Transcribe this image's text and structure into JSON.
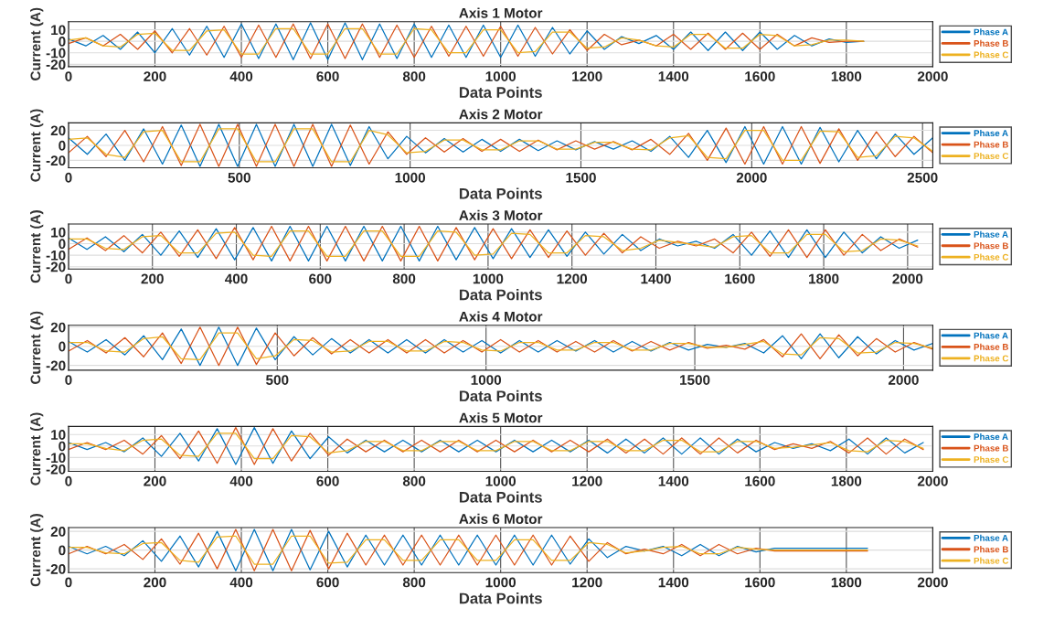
{
  "chart_data": [
    {
      "type": "line",
      "title": "Axis 1 Motor",
      "xlabel": "Data Points",
      "ylabel": "Current (A)",
      "xlim": [
        0,
        2000
      ],
      "ylim": [
        -22,
        17
      ],
      "xticks": [
        0,
        200,
        400,
        600,
        800,
        1000,
        1200,
        1400,
        1600,
        1800,
        2000
      ],
      "yticks": [
        -20,
        -10,
        0,
        10
      ],
      "grid": true,
      "legend": "right",
      "x": [
        0,
        40,
        80,
        120,
        160,
        200,
        240,
        280,
        320,
        360,
        400,
        440,
        480,
        520,
        560,
        600,
        640,
        680,
        720,
        760,
        800,
        840,
        880,
        920,
        960,
        1000,
        1040,
        1080,
        1120,
        1160,
        1200,
        1240,
        1280,
        1320,
        1360,
        1400,
        1440,
        1480,
        1520,
        1560,
        1600,
        1640,
        1680,
        1720,
        1760,
        1800,
        1840
      ],
      "series": [
        {
          "name": "Phase A",
          "color": "#0072bd",
          "values": [
            2,
            -4,
            5,
            -7,
            8,
            -10,
            11,
            -12,
            13,
            -14,
            15,
            -15,
            15,
            -16,
            16,
            -16,
            16,
            -16,
            15,
            -15,
            15,
            -14,
            14,
            -14,
            14,
            -14,
            14,
            -13,
            12,
            -11,
            9,
            -7,
            4,
            -2,
            5,
            -7,
            8,
            -8,
            8,
            -8,
            8,
            -7,
            5,
            -4,
            2,
            -1,
            0
          ]
        },
        {
          "name": "Phase B",
          "color": "#d95319",
          "values": [
            -2,
            3,
            -4,
            6,
            -7,
            9,
            -10,
            11,
            -12,
            13,
            -14,
            14,
            -14,
            15,
            -15,
            15,
            -15,
            15,
            -14,
            14,
            -14,
            13,
            -13,
            13,
            -13,
            13,
            -13,
            12,
            -11,
            10,
            -8,
            6,
            -3,
            1,
            -4,
            6,
            -7,
            7,
            -7,
            7,
            -7,
            6,
            -4,
            3,
            -1,
            0,
            0
          ]
        },
        {
          "name": "Phase C",
          "color": "#edb120",
          "values": [
            1,
            3,
            -4,
            -5,
            6,
            7,
            -8,
            -8,
            9,
            10,
            -11,
            -11,
            11,
            11,
            -11,
            -11,
            11,
            11,
            -11,
            -11,
            11,
            10,
            -10,
            -10,
            10,
            10,
            -10,
            -9,
            8,
            8,
            -6,
            -5,
            3,
            1,
            -4,
            -5,
            6,
            6,
            -6,
            -6,
            6,
            5,
            -4,
            -3,
            1,
            1,
            0
          ]
        }
      ]
    },
    {
      "type": "line",
      "title": "Axis 2 Motor",
      "xlabel": "Data Points",
      "ylabel": "Current (A)",
      "xlim": [
        0,
        2530
      ],
      "ylim": [
        -30,
        30
      ],
      "xticks": [
        0,
        500,
        1000,
        1500,
        2000,
        2500
      ],
      "yticks": [
        -20,
        0,
        20
      ],
      "grid": true,
      "legend": "right",
      "x": [
        0,
        55,
        110,
        165,
        220,
        275,
        330,
        385,
        440,
        495,
        550,
        605,
        660,
        715,
        770,
        825,
        880,
        935,
        990,
        1045,
        1100,
        1155,
        1210,
        1265,
        1320,
        1375,
        1430,
        1485,
        1540,
        1595,
        1650,
        1705,
        1760,
        1815,
        1870,
        1925,
        1980,
        2035,
        2090,
        2145,
        2200,
        2255,
        2310,
        2365,
        2420,
        2475,
        2530
      ],
      "series": [
        {
          "name": "Phase A",
          "color": "#0072bd",
          "values": [
            10,
            -12,
            15,
            -20,
            22,
            -25,
            27,
            -28,
            28,
            -28,
            28,
            -28,
            28,
            -28,
            28,
            -27,
            25,
            -18,
            12,
            -10,
            9,
            -9,
            8,
            -8,
            8,
            -7,
            6,
            -6,
            5,
            -5,
            6,
            -8,
            12,
            -16,
            20,
            -23,
            25,
            -25,
            25,
            -25,
            24,
            -22,
            20,
            -18,
            15,
            -12,
            10
          ]
        },
        {
          "name": "Phase B",
          "color": "#d95319",
          "values": [
            -10,
            12,
            -15,
            20,
            -22,
            25,
            -27,
            28,
            -28,
            28,
            -28,
            28,
            -28,
            28,
            -28,
            27,
            -25,
            18,
            -12,
            10,
            -9,
            9,
            -8,
            8,
            -8,
            7,
            -6,
            6,
            -5,
            5,
            -6,
            8,
            -12,
            16,
            -20,
            23,
            -25,
            25,
            -25,
            25,
            -24,
            22,
            -20,
            18,
            -15,
            12,
            -10
          ]
        },
        {
          "name": "Phase C",
          "color": "#edb120",
          "values": [
            8,
            10,
            -12,
            -16,
            18,
            20,
            -22,
            -22,
            22,
            22,
            -22,
            -22,
            22,
            22,
            -22,
            -22,
            20,
            14,
            -10,
            -8,
            7,
            7,
            -6,
            -6,
            6,
            6,
            -5,
            -5,
            4,
            4,
            -5,
            -6,
            10,
            13,
            -16,
            -18,
            20,
            20,
            -20,
            -20,
            19,
            18,
            -16,
            -14,
            12,
            10,
            -8
          ]
        }
      ]
    },
    {
      "type": "line",
      "title": "Axis 3 Motor",
      "xlabel": "Data Points",
      "ylabel": "Current (A)",
      "xlim": [
        0,
        2060
      ],
      "ylim": [
        -22,
        17
      ],
      "xticks": [
        0,
        200,
        400,
        600,
        800,
        1000,
        1200,
        1400,
        1600,
        1800,
        2000
      ],
      "yticks": [
        -20,
        -10,
        0,
        10
      ],
      "grid": true,
      "legend": "right",
      "x": [
        0,
        44,
        88,
        132,
        176,
        220,
        264,
        308,
        352,
        396,
        440,
        484,
        528,
        572,
        616,
        660,
        704,
        748,
        792,
        836,
        880,
        924,
        968,
        1012,
        1056,
        1100,
        1144,
        1188,
        1232,
        1276,
        1320,
        1364,
        1408,
        1452,
        1496,
        1540,
        1584,
        1628,
        1672,
        1716,
        1760,
        1804,
        1848,
        1892,
        1936,
        1980,
        2024
      ],
      "series": [
        {
          "name": "Phase A",
          "color": "#0072bd",
          "values": [
            5,
            -5,
            6,
            -7,
            8,
            -10,
            11,
            -12,
            13,
            -14,
            14,
            -15,
            15,
            -15,
            15,
            -15,
            15,
            -15,
            15,
            -15,
            15,
            -14,
            14,
            -13,
            13,
            -12,
            12,
            -11,
            10,
            -9,
            8,
            -6,
            4,
            -2,
            2,
            -4,
            8,
            -10,
            11,
            -12,
            12,
            -12,
            10,
            -8,
            6,
            -4,
            3
          ]
        },
        {
          "name": "Phase B",
          "color": "#d95319",
          "values": [
            -5,
            5,
            -6,
            7,
            -8,
            10,
            -11,
            12,
            -13,
            14,
            -14,
            15,
            -15,
            15,
            -15,
            15,
            -15,
            15,
            -15,
            15,
            -15,
            14,
            -14,
            13,
            -13,
            12,
            -12,
            11,
            -10,
            9,
            -8,
            6,
            -4,
            2,
            -2,
            4,
            -8,
            10,
            -11,
            12,
            -12,
            12,
            -10,
            8,
            -6,
            4,
            -3
          ]
        },
        {
          "name": "Phase C",
          "color": "#edb120",
          "values": [
            4,
            4,
            -4,
            -5,
            6,
            7,
            -8,
            -8,
            9,
            10,
            -10,
            -11,
            11,
            11,
            -11,
            -11,
            11,
            11,
            -11,
            -11,
            11,
            10,
            -10,
            -9,
            9,
            8,
            -8,
            -8,
            7,
            6,
            -6,
            -4,
            3,
            1,
            -1,
            -3,
            6,
            7,
            -8,
            -8,
            8,
            8,
            -7,
            -6,
            4,
            3,
            -2
          ]
        }
      ]
    },
    {
      "type": "line",
      "title": "Axis 4 Motor",
      "xlabel": "Data Points",
      "ylabel": "Current (A)",
      "xlim": [
        0,
        2070
      ],
      "ylim": [
        -25,
        22
      ],
      "xticks": [
        0,
        500,
        1000,
        1500,
        2000
      ],
      "yticks": [
        -20,
        0,
        20
      ],
      "grid": true,
      "legend": "right",
      "x": [
        0,
        45,
        90,
        135,
        180,
        225,
        270,
        315,
        360,
        405,
        450,
        495,
        540,
        585,
        630,
        675,
        720,
        765,
        810,
        855,
        900,
        945,
        990,
        1035,
        1080,
        1125,
        1170,
        1215,
        1260,
        1305,
        1350,
        1395,
        1440,
        1485,
        1530,
        1575,
        1620,
        1665,
        1710,
        1755,
        1800,
        1845,
        1890,
        1935,
        1980,
        2025,
        2070
      ],
      "series": [
        {
          "name": "Phase A",
          "color": "#0072bd",
          "values": [
            5,
            -6,
            7,
            -9,
            11,
            -14,
            18,
            -20,
            20,
            -20,
            19,
            -14,
            10,
            -9,
            8,
            -7,
            7,
            -7,
            7,
            -7,
            7,
            -6,
            6,
            -7,
            6,
            -6,
            6,
            -5,
            6,
            -6,
            5,
            -5,
            4,
            -4,
            2,
            -1,
            3,
            -7,
            11,
            -13,
            13,
            -12,
            10,
            -8,
            6,
            -4,
            3
          ]
        },
        {
          "name": "Phase B",
          "color": "#d95319",
          "values": [
            -5,
            6,
            -7,
            9,
            -11,
            14,
            -18,
            20,
            -20,
            20,
            -19,
            14,
            -10,
            9,
            -8,
            7,
            -7,
            7,
            -7,
            7,
            -7,
            6,
            -6,
            7,
            -6,
            6,
            -6,
            5,
            -6,
            6,
            -5,
            5,
            -4,
            4,
            -2,
            1,
            -3,
            7,
            -11,
            13,
            -13,
            12,
            -10,
            8,
            -6,
            4,
            -3
          ]
        },
        {
          "name": "Phase C",
          "color": "#edb120",
          "values": [
            4,
            4,
            -5,
            -6,
            8,
            10,
            -13,
            -14,
            14,
            14,
            -13,
            -10,
            7,
            6,
            -6,
            -5,
            5,
            5,
            -5,
            -5,
            5,
            4,
            -4,
            -5,
            4,
            4,
            -4,
            -4,
            4,
            4,
            -4,
            -4,
            3,
            3,
            -1,
            -1,
            2,
            5,
            -8,
            -9,
            9,
            8,
            -7,
            -6,
            4,
            3,
            -2
          ]
        }
      ]
    },
    {
      "type": "line",
      "title": "Axis 5 Motor",
      "xlabel": "Data Points",
      "ylabel": "Current (A)",
      "xlim": [
        0,
        2000
      ],
      "ylim": [
        -22,
        17
      ],
      "xticks": [
        0,
        200,
        400,
        600,
        800,
        1000,
        1200,
        1400,
        1600,
        1800,
        2000
      ],
      "yticks": [
        -20,
        -10,
        0,
        10
      ],
      "grid": true,
      "legend": "right",
      "x": [
        0,
        43,
        86,
        129,
        172,
        215,
        258,
        301,
        344,
        387,
        430,
        473,
        516,
        559,
        602,
        645,
        688,
        731,
        774,
        817,
        860,
        903,
        946,
        989,
        1032,
        1075,
        1118,
        1161,
        1204,
        1247,
        1290,
        1333,
        1376,
        1419,
        1462,
        1505,
        1548,
        1591,
        1634,
        1677,
        1720,
        1763,
        1806,
        1849,
        1892,
        1935,
        1978
      ],
      "series": [
        {
          "name": "Phase A",
          "color": "#0072bd",
          "values": [
            3,
            -3,
            3,
            -5,
            7,
            -9,
            11,
            -13,
            15,
            -16,
            16,
            -15,
            13,
            -11,
            8,
            -6,
            5,
            -5,
            5,
            -5,
            5,
            -5,
            5,
            -5,
            5,
            -5,
            5,
            -5,
            5,
            -6,
            6,
            -6,
            7,
            -7,
            7,
            -7,
            6,
            -5,
            3,
            -2,
            2,
            -4,
            6,
            -7,
            7,
            -6,
            3
          ]
        },
        {
          "name": "Phase B",
          "color": "#d95319",
          "values": [
            -3,
            3,
            -3,
            5,
            -7,
            9,
            -11,
            13,
            -15,
            16,
            -16,
            15,
            -13,
            11,
            -8,
            6,
            -5,
            5,
            -5,
            5,
            -5,
            5,
            -5,
            5,
            -5,
            5,
            -5,
            5,
            -5,
            6,
            -6,
            6,
            -7,
            7,
            -7,
            7,
            -6,
            5,
            -3,
            2,
            -2,
            4,
            -6,
            7,
            -7,
            6,
            -3
          ]
        },
        {
          "name": "Phase C",
          "color": "#edb120",
          "values": [
            2,
            2,
            -2,
            -4,
            5,
            6,
            -8,
            -9,
            11,
            11,
            -11,
            -11,
            9,
            8,
            -6,
            -4,
            4,
            4,
            -4,
            -4,
            4,
            4,
            -4,
            -4,
            4,
            4,
            -4,
            -4,
            4,
            4,
            -4,
            -4,
            5,
            5,
            -5,
            -5,
            4,
            4,
            -2,
            -1,
            1,
            3,
            -4,
            -5,
            5,
            4,
            -2
          ]
        }
      ]
    },
    {
      "type": "line",
      "title": "Axis 6 Motor",
      "xlabel": "Data Points",
      "ylabel": "Current (A)",
      "xlim": [
        0,
        2000
      ],
      "ylim": [
        -24,
        24
      ],
      "xticks": [
        0,
        200,
        400,
        600,
        800,
        1000,
        1200,
        1400,
        1600,
        1800,
        2000
      ],
      "yticks": [
        -20,
        0,
        20
      ],
      "grid": true,
      "legend": "right",
      "x": [
        0,
        43,
        86,
        129,
        172,
        215,
        258,
        301,
        344,
        387,
        430,
        473,
        516,
        559,
        602,
        645,
        688,
        731,
        774,
        817,
        860,
        903,
        946,
        989,
        1032,
        1075,
        1118,
        1161,
        1204,
        1247,
        1290,
        1333,
        1376,
        1419,
        1462,
        1505,
        1548,
        1591,
        1634,
        1677,
        1720,
        1763,
        1806,
        1849
      ],
      "series": [
        {
          "name": "Phase A",
          "color": "#0072bd",
          "values": [
            4,
            -4,
            4,
            -6,
            10,
            -12,
            15,
            -18,
            20,
            -22,
            22,
            -22,
            22,
            -21,
            20,
            -18,
            16,
            -16,
            16,
            -16,
            16,
            -16,
            16,
            -16,
            16,
            -16,
            16,
            -15,
            12,
            -8,
            4,
            -1,
            4,
            -6,
            6,
            -6,
            4,
            -2,
            2,
            2,
            2,
            2,
            2,
            2
          ]
        },
        {
          "name": "Phase B",
          "color": "#d95319",
          "values": [
            -4,
            4,
            -4,
            6,
            -10,
            12,
            -15,
            18,
            -20,
            22,
            -22,
            22,
            -22,
            21,
            -20,
            18,
            -16,
            16,
            -16,
            16,
            -16,
            16,
            -16,
            16,
            -16,
            16,
            -16,
            15,
            -12,
            8,
            -4,
            1,
            -4,
            6,
            -6,
            6,
            -4,
            2,
            -1,
            -1,
            -1,
            -1,
            -1,
            -1
          ]
        },
        {
          "name": "Phase C",
          "color": "#edb120",
          "values": [
            3,
            3,
            -3,
            -4,
            7,
            8,
            -11,
            -13,
            14,
            15,
            -15,
            -15,
            15,
            15,
            -14,
            -13,
            11,
            11,
            -11,
            -11,
            11,
            11,
            -11,
            -11,
            11,
            11,
            -11,
            -11,
            8,
            6,
            -3,
            -1,
            3,
            4,
            -4,
            -4,
            3,
            1,
            0,
            0,
            0,
            0,
            0,
            0
          ]
        }
      ]
    }
  ]
}
